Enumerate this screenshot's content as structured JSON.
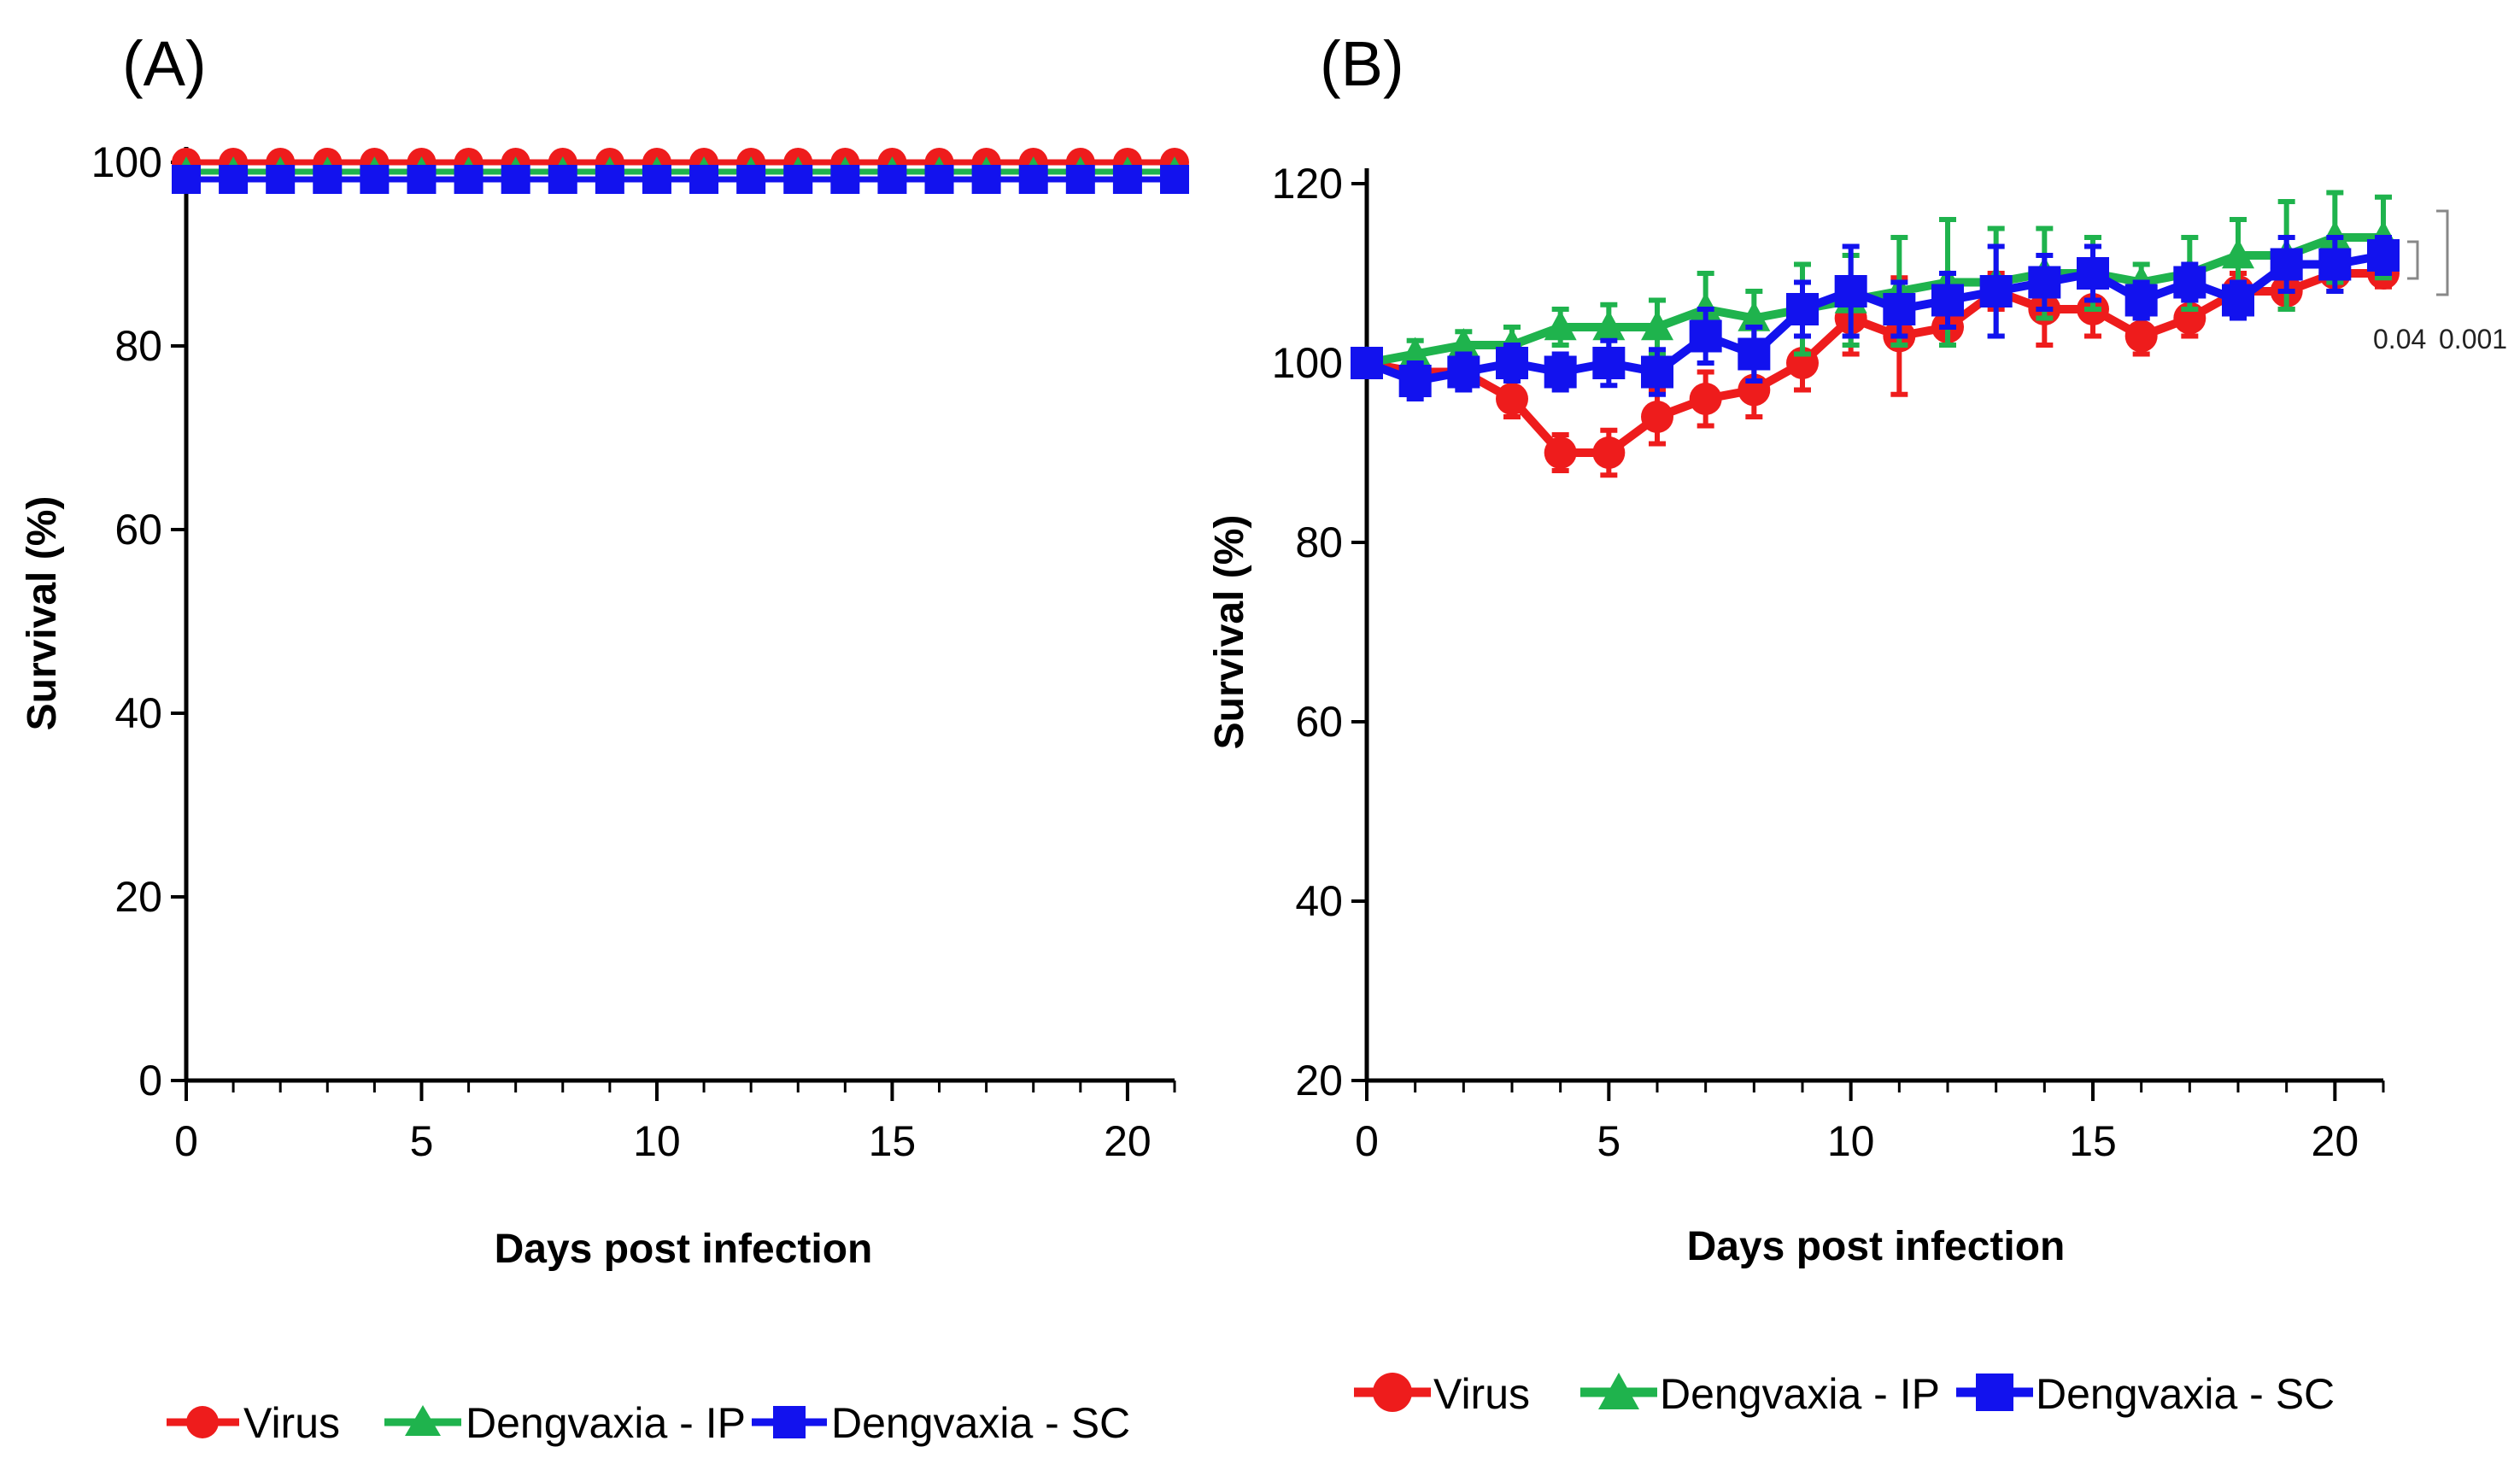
{
  "chart_data": [
    {
      "panel_label": "(A)",
      "type": "line",
      "xlabel": "Days post infection",
      "ylabel": "Survival (%)",
      "xlim": [
        0,
        21
      ],
      "ylim": [
        0,
        100
      ],
      "xticks": [
        "0",
        "5",
        "10",
        "15",
        "20"
      ],
      "yticks": [
        "0",
        "20",
        "40",
        "60",
        "80",
        "100"
      ],
      "x": [
        0,
        1,
        2,
        3,
        4,
        5,
        6,
        7,
        8,
        9,
        10,
        11,
        12,
        13,
        14,
        15,
        16,
        17,
        18,
        19,
        20,
        21
      ],
      "series": [
        {
          "name": "Virus",
          "color": "#ee1c1c",
          "marker": "circle",
          "values": [
            100,
            100,
            100,
            100,
            100,
            100,
            100,
            100,
            100,
            100,
            100,
            100,
            100,
            100,
            100,
            100,
            100,
            100,
            100,
            100,
            100,
            100
          ]
        },
        {
          "name": "Dengvaxia - IP",
          "color": "#1fb34d",
          "marker": "triangle",
          "values": [
            100,
            100,
            100,
            100,
            100,
            100,
            100,
            100,
            100,
            100,
            100,
            100,
            100,
            100,
            100,
            100,
            100,
            100,
            100,
            100,
            100,
            100
          ]
        },
        {
          "name": "Dengvaxia - SC",
          "color": "#1212ee",
          "marker": "square",
          "values": [
            100,
            100,
            100,
            100,
            100,
            100,
            100,
            100,
            100,
            100,
            100,
            100,
            100,
            100,
            100,
            100,
            100,
            100,
            100,
            100,
            100,
            100
          ]
        }
      ],
      "legend": [
        "Virus",
        "Dengvaxia - IP",
        "Dengvaxia - SC"
      ]
    },
    {
      "panel_label": "(B)",
      "type": "line",
      "xlabel": "Days post infection",
      "ylabel": "Survival (%)",
      "xlim": [
        0,
        21
      ],
      "ylim": [
        20,
        120
      ],
      "xticks": [
        "0",
        "5",
        "10",
        "15",
        "20"
      ],
      "yticks": [
        "20",
        "40",
        "60",
        "80",
        "100",
        "120"
      ],
      "x": [
        0,
        1,
        2,
        3,
        4,
        5,
        6,
        7,
        8,
        9,
        10,
        11,
        12,
        13,
        14,
        15,
        16,
        17,
        18,
        19,
        20,
        21
      ],
      "series": [
        {
          "name": "Virus",
          "color": "#ee1c1c",
          "marker": "circle",
          "values": [
            100,
            99,
            99,
            96,
            90,
            90,
            94,
            96,
            97,
            100,
            105,
            103,
            104,
            108,
            106,
            106,
            103,
            105,
            108,
            108,
            110,
            110
          ],
          "errors": [
            1.5,
            1.5,
            1.5,
            2,
            2,
            2.5,
            3,
            3,
            3,
            3,
            4,
            6.5,
            2,
            2,
            4,
            3,
            2,
            2,
            2,
            2,
            2,
            1.5
          ]
        },
        {
          "name": "Dengvaxia - IP",
          "color": "#1fb34d",
          "marker": "triangle",
          "values": [
            100,
            101,
            102,
            102,
            104,
            104,
            104,
            106,
            105,
            106,
            107,
            108,
            109,
            109,
            110,
            110,
            109,
            110,
            112,
            112,
            114,
            114
          ],
          "errors": [
            1,
            1.5,
            1.5,
            2,
            2,
            2.5,
            3,
            4,
            3,
            5,
            5,
            6,
            7,
            6,
            5,
            4,
            2,
            4,
            4,
            6,
            5,
            4.5
          ]
        },
        {
          "name": "Dengvaxia - SC",
          "color": "#1212ee",
          "marker": "square",
          "values": [
            100,
            98,
            99,
            100,
            99,
            100,
            99,
            103,
            101,
            106,
            108,
            106,
            107,
            108,
            109,
            110,
            107,
            109,
            107,
            111,
            111,
            112
          ],
          "errors": [
            1,
            2,
            2,
            2,
            2,
            2.5,
            2.5,
            3,
            3,
            3,
            5,
            3,
            3,
            5,
            3,
            3,
            2,
            2,
            2,
            3,
            3,
            2
          ]
        }
      ],
      "legend": [
        "Virus",
        "Dengvaxia - IP",
        "Dengvaxia - SC"
      ],
      "annotations": [
        "0.04",
        "0.001"
      ]
    }
  ]
}
